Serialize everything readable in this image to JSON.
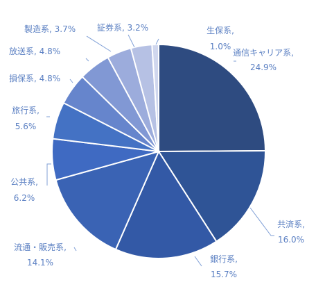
{
  "chart_data": {
    "type": "pie",
    "title": "",
    "colors": {
      "slice_edge": "#ffffff",
      "label_text": "#5a7fc2",
      "leader_line": "#7f9fd6"
    },
    "slices": [
      {
        "name": "通信キャリア系",
        "value_label": "24.9%",
        "value": 24.9,
        "color": "#2e4b80"
      },
      {
        "name": "共済系",
        "value_label": "16.0%",
        "value": 16.0,
        "color": "#2f5496"
      },
      {
        "name": "銀行系",
        "value_label": "15.7%",
        "value": 15.7,
        "color": "#3359a6"
      },
      {
        "name": "流通・販売系",
        "value_label": "14.1%",
        "value": 14.1,
        "color": "#3a63b4"
      },
      {
        "name": "公共系",
        "value_label": "6.2%",
        "value": 6.2,
        "color": "#3f6ac2"
      },
      {
        "name": "旅行系",
        "value_label": "5.6%",
        "value": 5.6,
        "color": "#4472c4"
      },
      {
        "name": "損保系",
        "value_label": "4.8%",
        "value": 4.8,
        "color": "#6685cc"
      },
      {
        "name": "放送系",
        "value_label": "4.8%",
        "value": 4.8,
        "color": "#8198d4"
      },
      {
        "name": "製造系",
        "value_label": "3.7%",
        "value": 3.7,
        "color": "#9cacdc"
      },
      {
        "name": "証券系",
        "value_label": "3.2%",
        "value": 3.2,
        "color": "#b6c1e4"
      },
      {
        "name": "生保系",
        "value_label": "1.0%",
        "value": 1.0,
        "color": "#d0d7ee"
      }
    ]
  }
}
